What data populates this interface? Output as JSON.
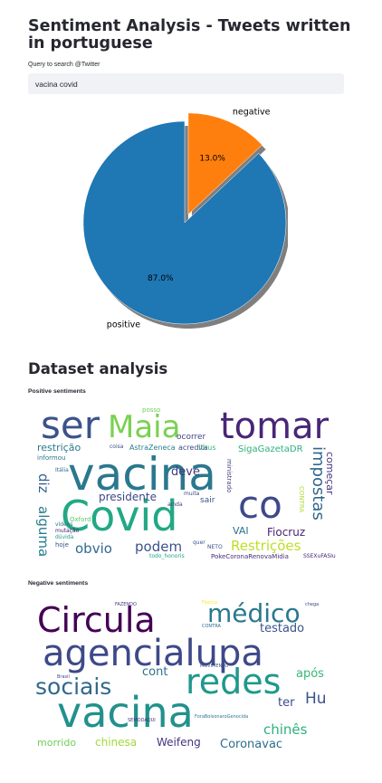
{
  "header": {
    "title": "Sentiment Analysis - Tweets written in portuguese"
  },
  "search": {
    "label": "Query to search @Twitter",
    "value": "vacina covid"
  },
  "chart_data": {
    "type": "pie",
    "labels": [
      "positive",
      "negative"
    ],
    "values": [
      87.0,
      13.0
    ],
    "value_labels": [
      "87.0%",
      "13.0%"
    ],
    "colors": [
      "#1f77b4",
      "#ff7f0e"
    ],
    "explode": "negative",
    "shadow": true
  },
  "dataset": {
    "title": "Dataset analysis",
    "positive_label": "Positive sentiments",
    "negative_label": "Negative sentiments"
  },
  "positive_cloud": {
    "words": [
      {
        "text": "ser",
        "color": "#3b528b"
      },
      {
        "text": "Maia",
        "color": "#7ad151"
      },
      {
        "text": "tomar",
        "color": "#482677"
      },
      {
        "text": "vacina",
        "color": "#2a788e"
      },
      {
        "text": "Covid",
        "color": "#22a884"
      },
      {
        "text": "co",
        "color": "#3e4989"
      },
      {
        "text": "restrição",
        "color": "#2a788e"
      },
      {
        "text": "impostas",
        "color": "#31688e"
      },
      {
        "text": "deve",
        "color": "#443983"
      },
      {
        "text": "diz",
        "color": "#355f8d"
      },
      {
        "text": "alguma",
        "color": "#287d8e"
      },
      {
        "text": "presidente",
        "color": "#3f4788"
      },
      {
        "text": "podem",
        "color": "#3b528b"
      },
      {
        "text": "obvio",
        "color": "#31688e"
      },
      {
        "text": "Restrições",
        "color": "#bddf26"
      },
      {
        "text": "Fiocruz",
        "color": "#482475"
      },
      {
        "text": "SigaGazetaDR",
        "color": "#2db27d"
      },
      {
        "text": "começar",
        "color": "#46337e"
      },
      {
        "text": "VAI",
        "color": "#2c728e"
      },
      {
        "text": "AstraZeneca",
        "color": "#26828e"
      },
      {
        "text": "acredita",
        "color": "#3e4a89"
      },
      {
        "text": "ocorrer",
        "color": "#414487"
      },
      {
        "text": "vírus",
        "color": "#35b779"
      },
      {
        "text": "posso",
        "color": "#6ece58"
      },
      {
        "text": "informou",
        "color": "#2a788e"
      },
      {
        "text": "ministrado",
        "color": "#433e85"
      },
      {
        "text": "PokeCoronaRenovaMidia",
        "color": "#472d7b"
      },
      {
        "text": "todo_honoris",
        "color": "#20a386"
      },
      {
        "text": "hoje",
        "color": "#3b528b"
      },
      {
        "text": "Oxford",
        "color": "#5ec962"
      },
      {
        "text": "Itália",
        "color": "#2e6e8e"
      },
      {
        "text": "CONTRA",
        "color": "#addc30"
      },
      {
        "text": "sair",
        "color": "#3a538b"
      },
      {
        "text": "muita",
        "color": "#404588"
      },
      {
        "text": "vídeos",
        "color": "#2c728e"
      },
      {
        "text": "mutação",
        "color": "#481b6d"
      },
      {
        "text": "dúvida",
        "color": "#1f988b"
      },
      {
        "text": "coisa",
        "color": "#3e4a89"
      },
      {
        "text": "ainda",
        "color": "#443a83"
      },
      {
        "text": "NETO",
        "color": "#3c4f8a"
      },
      {
        "text": "quer",
        "color": "#38588c"
      },
      {
        "text": "SSEXuFASIu",
        "color": "#482173"
      }
    ]
  },
  "negative_cloud": {
    "words": [
      {
        "text": "Circula",
        "color": "#440154"
      },
      {
        "text": "médico",
        "color": "#2a788e"
      },
      {
        "text": "testado",
        "color": "#3b528b"
      },
      {
        "text": "agencialupa",
        "color": "#3e4989"
      },
      {
        "text": "sociais",
        "color": "#31688e"
      },
      {
        "text": "redes",
        "color": "#1f988b"
      },
      {
        "text": "cont",
        "color": "#2c728e"
      },
      {
        "text": "após",
        "color": "#35b779"
      },
      {
        "text": "Hu",
        "color": "#3b528b"
      },
      {
        "text": "ter",
        "color": "#3e4a89"
      },
      {
        "text": "vacina",
        "color": "#21918c"
      },
      {
        "text": "chinês",
        "color": "#2db27d"
      },
      {
        "text": "chinesa",
        "color": "#a0da39"
      },
      {
        "text": "morrido",
        "color": "#6ece58"
      },
      {
        "text": "Weifeng",
        "color": "#46337e"
      },
      {
        "text": "Coronavac",
        "color": "#2e6e8e"
      },
      {
        "text": "FAZENDO",
        "color": "#443983"
      },
      {
        "text": "Fiocruz",
        "color": "#fde725"
      },
      {
        "text": "CONTRA",
        "color": "#31688e"
      },
      {
        "text": "MOVIMENTO",
        "color": "#3b528b"
      },
      {
        "text": "ForaBolsonaroGenocida",
        "color": "#2a788e"
      },
      {
        "text": "Brasil",
        "color": "#404588"
      },
      {
        "text": "SEMODAQUI",
        "color": "#472d7b"
      },
      {
        "text": "chega",
        "color": "#3e4a89"
      }
    ]
  }
}
